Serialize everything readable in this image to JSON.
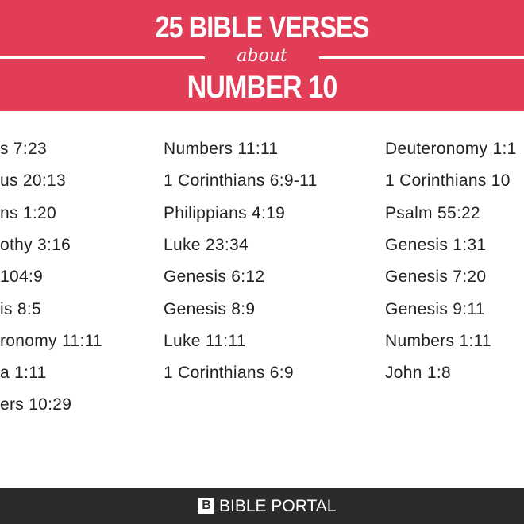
{
  "header": {
    "title_line1": "25 BIBLE VERSES",
    "title_line2": "about",
    "title_line3": "NUMBER 10"
  },
  "columns": [
    [
      "s 7:23",
      "us 20:13",
      "ns 1:20",
      "othy 3:16",
      "104:9",
      "is 8:5",
      "ronomy 11:11",
      "a 1:11",
      "ers 10:29"
    ],
    [
      "Numbers 11:11",
      "1 Corinthians 6:9-11",
      "Philippians 4:19",
      "Luke 23:34",
      "Genesis 6:12",
      "Genesis 8:9",
      "Luke 11:11",
      "1 Corinthians 6:9"
    ],
    [
      "Deuteronomy 1:1",
      "1 Corinthians 10",
      "Psalm 55:22",
      "Genesis 1:31",
      "Genesis 7:20",
      "Genesis 9:11",
      "Numbers 1:11",
      "John 1:8"
    ]
  ],
  "footer": {
    "logo_letter": "B",
    "brand": "BIBLE PORTAL"
  }
}
